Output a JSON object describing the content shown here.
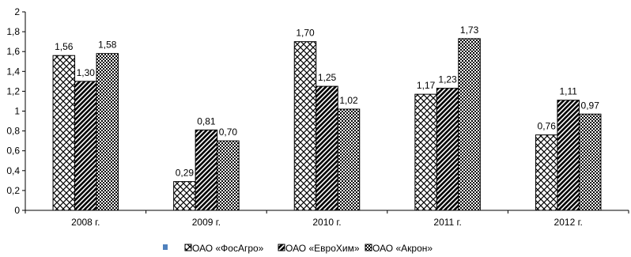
{
  "chart_data": {
    "type": "bar",
    "categories": [
      "2008 г.",
      "2009  г.",
      "2010 г.",
      "2011 г.",
      "2012 г."
    ],
    "series": [
      {
        "name": "ОАО «ФосАгро»",
        "values": [
          1.56,
          0.29,
          1.7,
          1.17,
          0.76
        ],
        "pattern": "cross-hatch"
      },
      {
        "name": "ОАО «ЕвроХим»",
        "values": [
          1.3,
          0.81,
          1.25,
          1.23,
          1.11
        ],
        "pattern": "diagonal-stripes"
      },
      {
        "name": "ОАО «Акрон»",
        "values": [
          1.58,
          0.7,
          1.02,
          1.73,
          0.97
        ],
        "pattern": "checker"
      }
    ],
    "data_labels": [
      [
        "1,56",
        "0,29",
        "1,70",
        "1,17",
        "0,76"
      ],
      [
        "1,30",
        "0,81",
        "1,25",
        "1,23",
        "1,11"
      ],
      [
        "1,58",
        "0,70",
        "1,02",
        "1,73",
        "0,97"
      ]
    ],
    "y_ticks": [
      "0",
      "0,2",
      "0,4",
      "0,6",
      "0,8",
      "1",
      "1,2",
      "1,4",
      "1,6",
      "1,8",
      "2"
    ],
    "ylim": [
      0,
      2
    ],
    "grid": false,
    "legend_position": "bottom",
    "legend_marker_color": "#4f81bd"
  }
}
